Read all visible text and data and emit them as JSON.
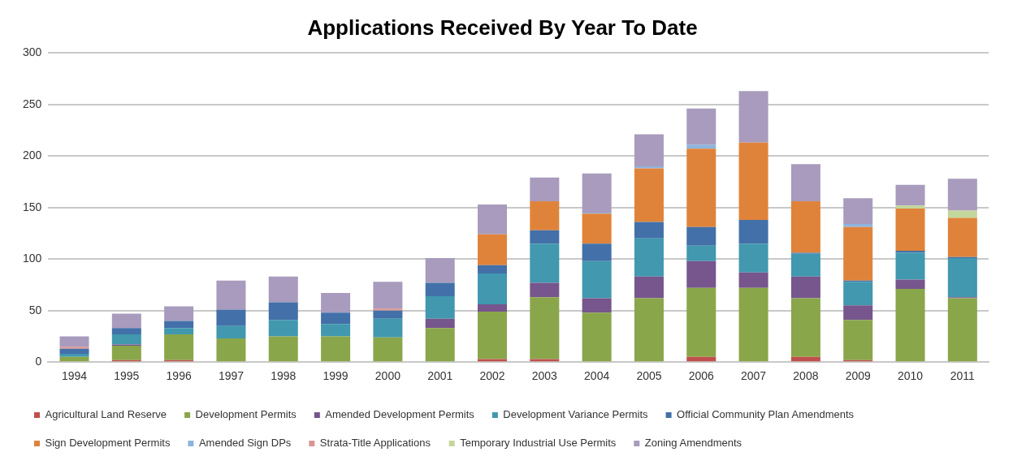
{
  "chart_data": {
    "type": "bar",
    "title": "Applications Received By Year To Date",
    "stacked": true,
    "grid": "y",
    "legend": "bottom",
    "categories": [
      "1994",
      "1995",
      "1996",
      "1997",
      "1998",
      "1999",
      "2000",
      "2001",
      "2002",
      "2003",
      "2004",
      "2005",
      "2006",
      "2007",
      "2008",
      "2009",
      "2010",
      "2011"
    ],
    "ylim": [
      0,
      300
    ],
    "yticks": [
      0,
      50,
      100,
      150,
      200,
      250,
      300
    ],
    "series": [
      {
        "name": "Agricultural Land Reserve",
        "color": "#c0504d",
        "values": [
          0,
          2,
          2,
          0,
          null,
          null,
          0,
          0,
          3,
          3,
          0,
          0,
          5,
          0,
          5,
          2,
          0,
          0
        ]
      },
      {
        "name": "Development Permits",
        "color": "#8aa64a",
        "values": [
          5,
          14,
          25,
          23,
          25,
          25,
          24,
          33,
          46,
          60,
          48,
          62,
          67,
          72,
          57,
          39,
          71,
          62
        ]
      },
      {
        "name": "Amended Development Permits",
        "color": "#76568c",
        "values": [
          0,
          1,
          0,
          0,
          0,
          0,
          0,
          9,
          7,
          14,
          14,
          21,
          26,
          15,
          21,
          14,
          9,
          1
        ]
      },
      {
        "name": "Development Variance Permits",
        "color": "#4198af",
        "values": [
          3,
          10,
          6,
          12,
          16,
          12,
          18,
          22,
          30,
          38,
          36,
          37,
          15,
          28,
          22,
          23,
          26,
          38
        ]
      },
      {
        "name": "Official Community Plan Amendments",
        "color": "#4370a8",
        "values": [
          5,
          6,
          7,
          16,
          17,
          11,
          8,
          13,
          8,
          13,
          17,
          16,
          18,
          23,
          1,
          1,
          2,
          1
        ]
      },
      {
        "name": "Sign Development Permits",
        "color": "#e0833a",
        "values": [
          0,
          0,
          0,
          0,
          0,
          0,
          0,
          0,
          30,
          28,
          29,
          52,
          76,
          75,
          50,
          52,
          41,
          38
        ]
      },
      {
        "name": "Amended Sign DPs",
        "color": "#8fb4dc",
        "values": [
          0,
          0,
          0,
          0,
          0,
          0,
          0,
          0,
          0,
          0,
          1,
          2,
          4,
          0,
          0,
          3,
          0,
          0
        ]
      },
      {
        "name": "Strata-Title Applications",
        "color": "#d99694",
        "values": [
          2,
          0,
          0,
          0,
          0,
          0,
          2,
          0,
          0,
          0,
          0,
          0,
          0,
          0,
          0,
          0,
          0,
          0
        ]
      },
      {
        "name": "Temporary Industrial Use Permits",
        "color": "#c3d69b",
        "values": [
          0,
          0,
          0,
          0,
          0,
          0,
          0,
          0,
          0,
          0,
          0,
          0,
          0,
          0,
          0,
          0,
          3,
          7
        ]
      },
      {
        "name": "Zoning Amendments",
        "color": "#a99bbd",
        "values": [
          10,
          14,
          14,
          28,
          25,
          19,
          26,
          24,
          29,
          23,
          38,
          31,
          35,
          50,
          36,
          25,
          20,
          31
        ]
      }
    ]
  }
}
